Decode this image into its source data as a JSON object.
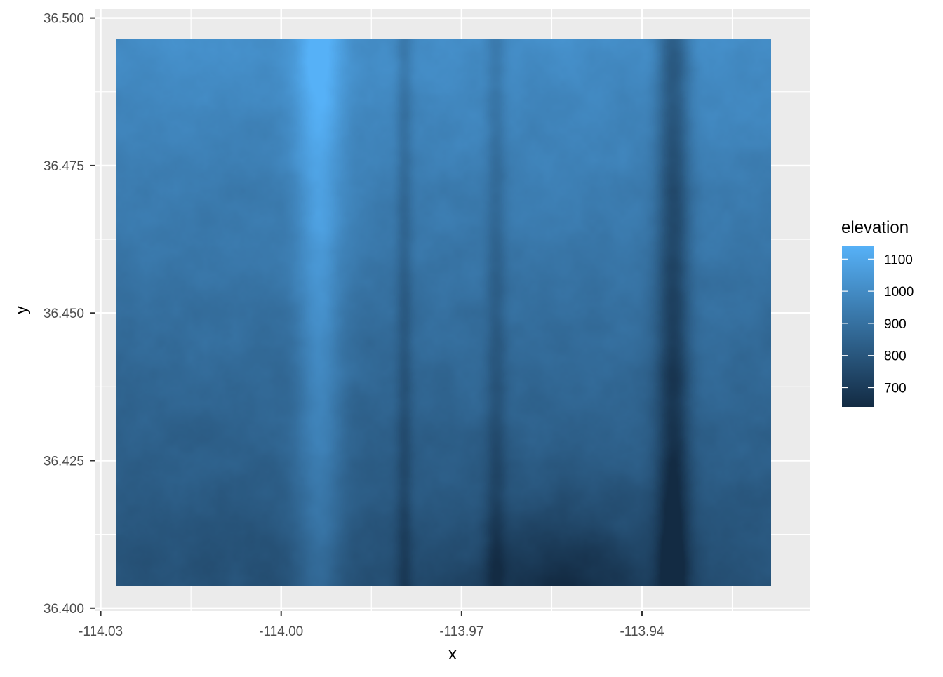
{
  "chart_data": {
    "type": "heatmap",
    "xlabel": "x",
    "ylabel": "y",
    "xlim": [
      -114.031,
      -113.912
    ],
    "ylim": [
      36.3995,
      36.5015
    ],
    "x_ticks": [
      -114.03,
      -114.0,
      -113.97,
      -113.94
    ],
    "x_tick_labels": [
      "-114.03",
      "-114.00",
      "-113.97",
      "-113.94"
    ],
    "y_ticks": [
      36.4,
      36.425,
      36.45,
      36.475,
      36.5
    ],
    "y_tick_labels": [
      "36.400",
      "36.425",
      "36.450",
      "36.475",
      "36.500"
    ],
    "raster_extent": {
      "x": [
        -114.0275,
        -113.9185
      ],
      "y": [
        36.4038,
        36.4965
      ]
    },
    "fill": {
      "variable": "elevation",
      "range": [
        640,
        1140
      ],
      "low_color": "#132B43",
      "high_color": "#56B1F7",
      "breaks": [
        700,
        800,
        900,
        1000,
        1100
      ],
      "break_labels": [
        "700",
        "800",
        "900",
        "1000",
        "1100"
      ]
    },
    "legend_position": "right",
    "grid": true,
    "panel_background": "#EBEBEB"
  }
}
